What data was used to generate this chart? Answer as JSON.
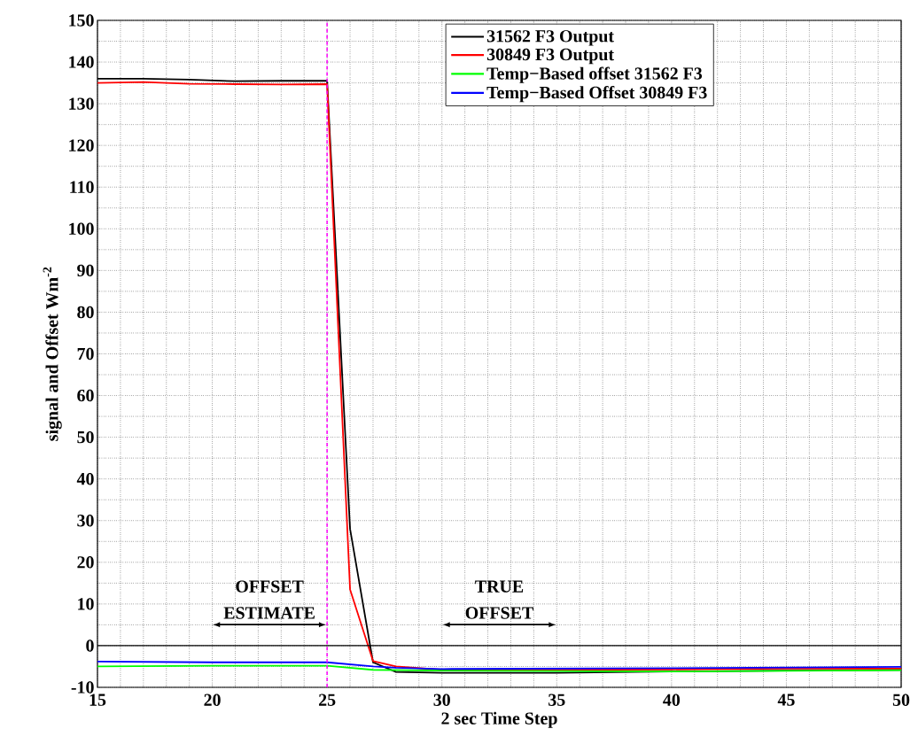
{
  "chart_data": {
    "type": "line",
    "xlabel": "2 sec Time Step",
    "ylabel": "signal and Offset Wm$^{-2}$",
    "xlim": [
      15,
      50
    ],
    "ylim": [
      -10,
      150
    ],
    "xticks": [
      15,
      20,
      25,
      30,
      35,
      40,
      45,
      50
    ],
    "yticks": [
      -10,
      0,
      10,
      20,
      30,
      40,
      50,
      60,
      70,
      80,
      90,
      100,
      110,
      120,
      130,
      140,
      150
    ],
    "grid": true,
    "legend": "top",
    "marker": "none",
    "line_style": "solid",
    "series": [
      {
        "name": "31562 F3 Output",
        "color": "#000000",
        "x": [
          15,
          17,
          19,
          21,
          23,
          25,
          26,
          27,
          28,
          30,
          35,
          40,
          45,
          50
        ],
        "values": [
          136,
          136,
          135.8,
          135.4,
          135.5,
          135.5,
          28,
          -4,
          -6.3,
          -6.5,
          -6.5,
          -6.2,
          -6,
          -5.8
        ]
      },
      {
        "name": "30849 F3 Output",
        "color": "#ff0000",
        "x": [
          15,
          17,
          19,
          21,
          23,
          25,
          26,
          27,
          28,
          30,
          35,
          40,
          45,
          50
        ],
        "values": [
          135,
          135.2,
          134.8,
          134.7,
          134.6,
          134.7,
          13.5,
          -3.7,
          -5,
          -5.8,
          -5.8,
          -5.7,
          -5.5,
          -5.5
        ]
      },
      {
        "name": "Temp−Based offset 31562 F3",
        "color": "#00ff00",
        "x": [
          15,
          20,
          25,
          27,
          30,
          40,
          50
        ],
        "values": [
          -5,
          -4.8,
          -4.8,
          -5.8,
          -6,
          -6.2,
          -5.9
        ]
      },
      {
        "name": "Temp−Based Offset 30849 F3",
        "color": "#0000ff",
        "x": [
          15,
          20,
          25,
          27,
          28,
          30,
          40,
          50
        ],
        "values": [
          -3.8,
          -4,
          -4,
          -5,
          -5.3,
          -5.6,
          -5.4,
          -5.1
        ]
      }
    ],
    "ref_lines": [
      {
        "axis": "x",
        "value": 25,
        "color": "#ff00ff",
        "line_style": "dashed"
      },
      {
        "axis": "y",
        "value": 0,
        "color": "#000000",
        "line_style": "solid"
      }
    ],
    "annotations": [
      "OFFSET ESTIMATE",
      "TRUE OFFSET"
    ]
  }
}
